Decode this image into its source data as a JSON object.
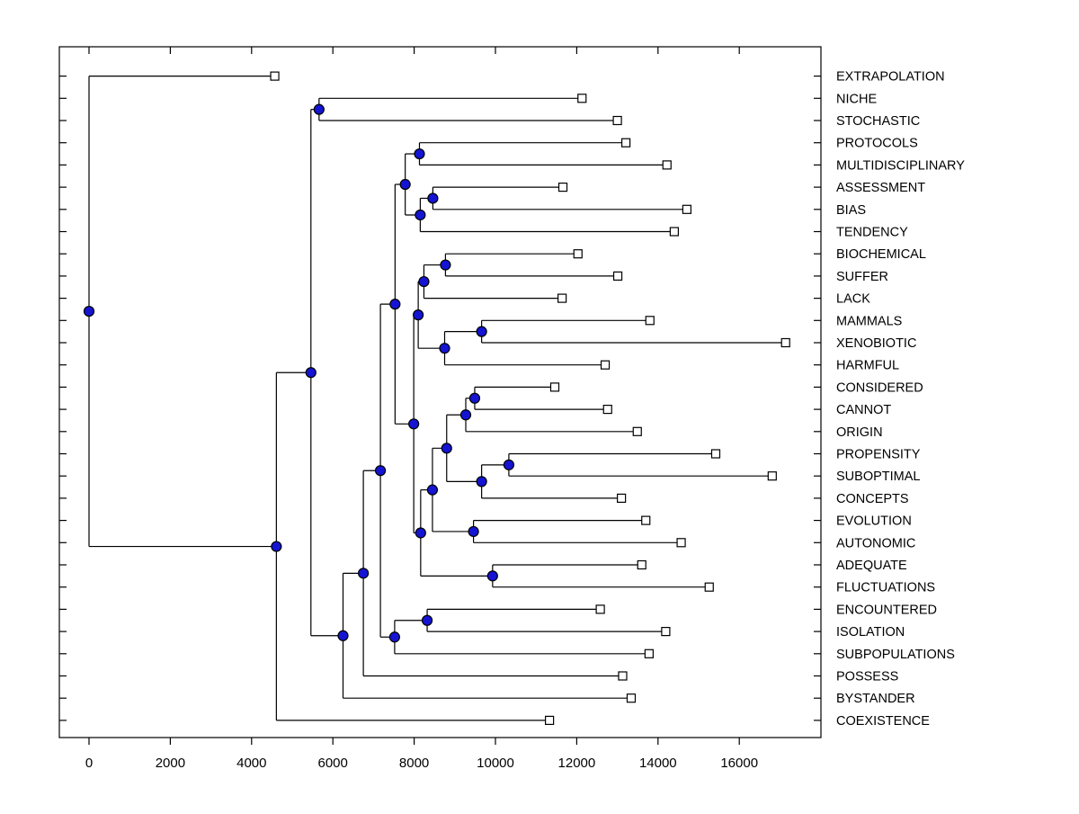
{
  "figure": {
    "background": "#ffffff",
    "line_color": "#000000",
    "internal_node_fill": "#1414D2",
    "internal_node_edge": "#000000",
    "leaf_marker_fill": "#ffffff",
    "leaf_marker_edge": "#000000"
  },
  "chart_data": {
    "type": "dendrogram",
    "orientation": "horizontal-right",
    "title": "",
    "xlabel": "",
    "ylabel": "",
    "grid": false,
    "x_ticks": [
      0,
      2000,
      4000,
      6000,
      8000,
      10000,
      12000,
      14000,
      16000
    ],
    "xlim": [
      -730,
      18010
    ],
    "leaf_labels": [
      "EXTRAPOLATION",
      "NICHE",
      "STOCHASTIC",
      "PROTOCOLS",
      "MULTIDISCIPLINARY",
      "ASSESSMENT",
      "BIAS",
      "TENDENCY",
      "BIOCHEMICAL",
      "SUFFER",
      "LACK",
      "MAMMALS",
      "XENOBIOTIC",
      "HARMFUL",
      "CONSIDERED",
      "CANNOT",
      "ORIGIN",
      "PROPENSITY",
      "SUBOPTIMAL",
      "CONCEPTS",
      "EVOLUTION",
      "AUTONOMIC",
      "ADEQUATE",
      "FLUCTUATIONS",
      "ENCOUNTERED",
      "ISOLATION",
      "SUBPOPULATIONS",
      "POSSESS",
      "BYSTANDER",
      "COEXISTENCE"
    ],
    "tree": {
      "v": 0,
      "children": [
        {
          "label": "EXTRAPOLATION",
          "v": 4570
        },
        {
          "v": 4610,
          "children": [
            {
              "v": 5460,
              "children": [
                {
                  "v": 5660,
                  "children": [
                    {
                      "label": "NICHE",
                      "v": 12130
                    },
                    {
                      "label": "STOCHASTIC",
                      "v": 13000
                    }
                  ]
                },
                {
                  "v": 6250,
                  "children": [
                    {
                      "v": 6750,
                      "children": [
                        {
                          "v": 7170,
                          "children": [
                            {
                              "v": 7530,
                              "children": [
                                {
                                  "v": 7780,
                                  "children": [
                                    {
                                      "v": 8130,
                                      "children": [
                                        {
                                          "label": "PROTOCOLS",
                                          "v": 13210
                                        },
                                        {
                                          "label": "MULTIDISCIPLINARY",
                                          "v": 14220
                                        }
                                      ]
                                    },
                                    {
                                      "v": 8150,
                                      "children": [
                                        {
                                          "v": 8460,
                                          "children": [
                                            {
                                              "label": "ASSESSMENT",
                                              "v": 11660
                                            },
                                            {
                                              "label": "BIAS",
                                              "v": 14710
                                            }
                                          ]
                                        },
                                        {
                                          "label": "TENDENCY",
                                          "v": 14400
                                        }
                                      ]
                                    }
                                  ]
                                },
                                {
                                  "v": 7990,
                                  "children": [
                                    {
                                      "v": 8100,
                                      "children": [
                                        {
                                          "v": 8240,
                                          "children": [
                                            {
                                              "v": 8770,
                                              "children": [
                                                {
                                                  "label": "BIOCHEMICAL",
                                                  "v": 12030
                                                },
                                                {
                                                  "label": "SUFFER",
                                                  "v": 13010
                                                }
                                              ]
                                            },
                                            {
                                              "label": "LACK",
                                              "v": 11640
                                            }
                                          ]
                                        },
                                        {
                                          "v": 8750,
                                          "children": [
                                            {
                                              "v": 9660,
                                              "children": [
                                                {
                                                  "label": "MAMMALS",
                                                  "v": 13800
                                                },
                                                {
                                                  "label": "XENOBIOTIC",
                                                  "v": 17140
                                                }
                                              ]
                                            },
                                            {
                                              "label": "HARMFUL",
                                              "v": 12700
                                            }
                                          ]
                                        }
                                      ]
                                    },
                                    {
                                      "v": 8160,
                                      "children": [
                                        {
                                          "v": 8450,
                                          "children": [
                                            {
                                              "v": 8800,
                                              "children": [
                                                {
                                                  "v": 9270,
                                                  "children": [
                                                    {
                                                      "v": 9490,
                                                      "children": [
                                                        {
                                                          "label": "CONSIDERED",
                                                          "v": 11460
                                                        },
                                                        {
                                                          "label": "CANNOT",
                                                          "v": 12760
                                                        }
                                                      ]
                                                    },
                                                    {
                                                      "label": "ORIGIN",
                                                      "v": 13490
                                                    }
                                                  ]
                                                },
                                                {
                                                  "v": 9660,
                                                  "children": [
                                                    {
                                                      "v": 10330,
                                                      "children": [
                                                        {
                                                          "label": "PROPENSITY",
                                                          "v": 15420
                                                        },
                                                        {
                                                          "label": "SUBOPTIMAL",
                                                          "v": 16810
                                                        }
                                                      ]
                                                    },
                                                    {
                                                      "label": "CONCEPTS",
                                                      "v": 13100
                                                    }
                                                  ]
                                                }
                                              ]
                                            },
                                            {
                                              "v": 9460,
                                              "children": [
                                                {
                                                  "label": "EVOLUTION",
                                                  "v": 13700
                                                },
                                                {
                                                  "label": "AUTONOMIC",
                                                  "v": 14570
                                                }
                                              ]
                                            }
                                          ]
                                        },
                                        {
                                          "v": 9930,
                                          "children": [
                                            {
                                              "label": "ADEQUATE",
                                              "v": 13600
                                            },
                                            {
                                              "label": "FLUCTUATIONS",
                                              "v": 15260
                                            }
                                          ]
                                        }
                                      ]
                                    }
                                  ]
                                }
                              ]
                            },
                            {
                              "v": 7520,
                              "children": [
                                {
                                  "v": 8320,
                                  "children": [
                                    {
                                      "label": "ENCOUNTERED",
                                      "v": 12580
                                    },
                                    {
                                      "label": "ISOLATION",
                                      "v": 14190
                                    }
                                  ]
                                },
                                {
                                  "label": "SUBPOPULATIONS",
                                  "v": 13780
                                }
                              ]
                            }
                          ]
                        },
                        {
                          "label": "POSSESS",
                          "v": 13130
                        }
                      ]
                    },
                    {
                      "label": "BYSTANDER",
                      "v": 13340
                    }
                  ]
                }
              ]
            },
            {
              "label": "COEXISTENCE",
              "v": 11330
            }
          ]
        }
      ]
    }
  }
}
